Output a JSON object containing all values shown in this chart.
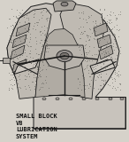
{
  "bg_color": "#d6d2ca",
  "text_color": "#111111",
  "title_lines": [
    "SMALL BLOCK",
    "V8",
    "LUBRICATION",
    "SYSTEM"
  ],
  "title_fontsize": 5.0,
  "fig_bg": "#d6d2ca",
  "engine_dark": "#1a1a1a",
  "engine_mid": "#888880",
  "engine_light": "#c4bfb8",
  "engine_lighter": "#dedad4"
}
